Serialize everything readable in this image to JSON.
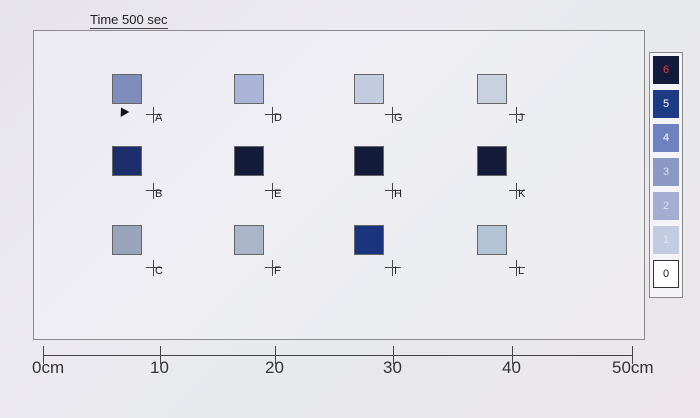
{
  "title": "Time 500 sec",
  "squares": [
    {
      "label": "A",
      "color": "#7f8dbc"
    },
    {
      "label": "B",
      "color": "#1c2e6b"
    },
    {
      "label": "C",
      "color": "#9aa3bc"
    },
    {
      "label": "D",
      "color": "#a9b4d6"
    },
    {
      "label": "E",
      "color": "#131c38"
    },
    {
      "label": "F",
      "color": "#aab6c8"
    },
    {
      "label": "G",
      "color": "#c3cbdf"
    },
    {
      "label": "H",
      "color": "#141c3c"
    },
    {
      "label": "I",
      "color": "#1a357e"
    },
    {
      "label": "J",
      "color": "#c9d0e0"
    },
    {
      "label": "K",
      "color": "#141b3a"
    },
    {
      "label": "L",
      "color": "#b3c3d6"
    }
  ],
  "scale": [
    {
      "value": "6",
      "bg": "#131a3c",
      "fg": "#e04040"
    },
    {
      "value": "5",
      "bg": "#1c3b82",
      "fg": "#ffffff"
    },
    {
      "value": "4",
      "bg": "#6f82c0",
      "fg": "#ffffff"
    },
    {
      "value": "3",
      "bg": "#8c98c4",
      "fg": "#dde0ea"
    },
    {
      "value": "2",
      "bg": "#a3aed2",
      "fg": "#dde0ea"
    },
    {
      "value": "1",
      "bg": "#c3cbe2",
      "fg": "#e4e7f0"
    },
    {
      "value": "0",
      "bg": "#ffffff",
      "fg": "#222222"
    }
  ],
  "ruler": [
    "0cm",
    "10",
    "20",
    "30",
    "40",
    "50cm"
  ]
}
